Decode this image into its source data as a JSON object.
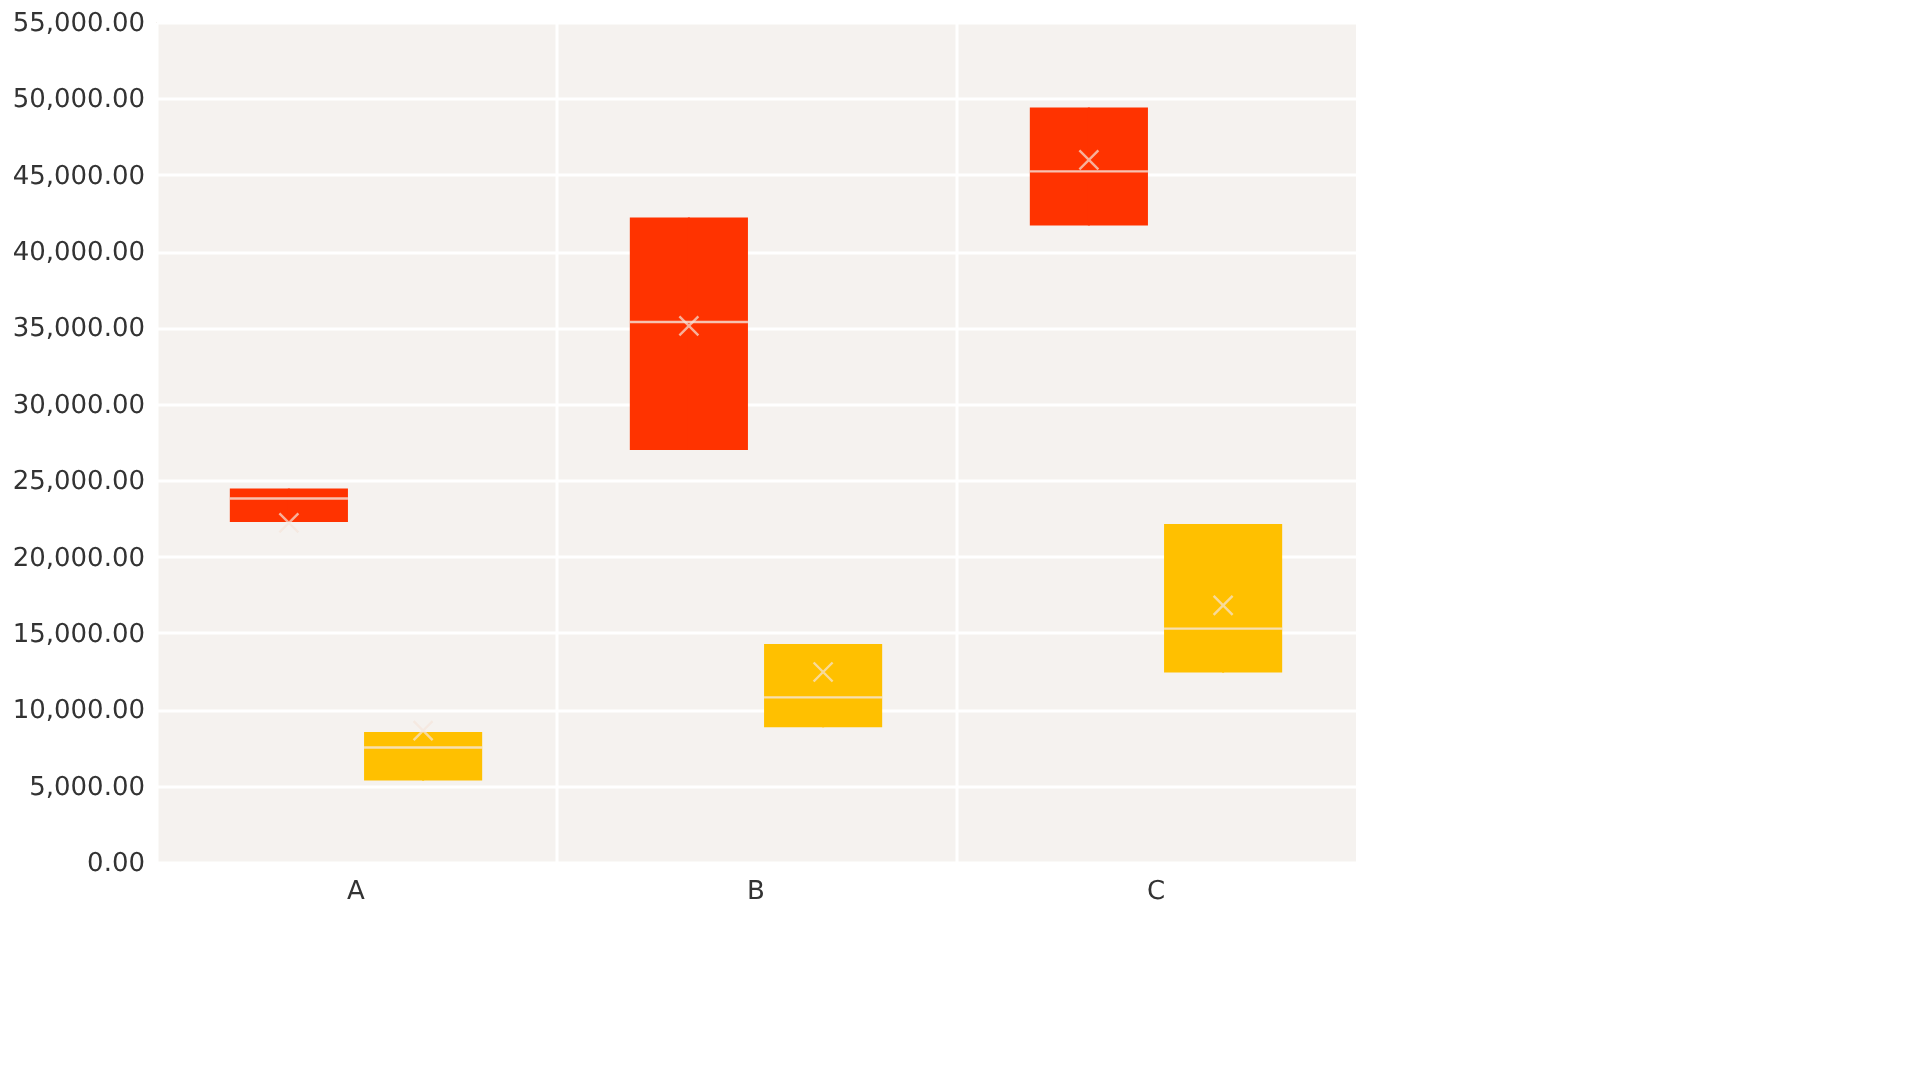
{
  "chart_data": {
    "type": "box",
    "categories": [
      "A",
      "B",
      "C"
    ],
    "series": [
      {
        "color": "#ff3300",
        "boxes": [
          {
            "low": 22260,
            "q1": 22260,
            "median": 23800,
            "q3": 24450,
            "high": 24450,
            "mean": 22200
          },
          {
            "low": 26980,
            "q1": 26980,
            "median": 35360,
            "q3": 42200,
            "high": 42200,
            "mean": 35100
          },
          {
            "low": 41680,
            "q1": 41680,
            "median": 45220,
            "q3": 49400,
            "high": 49400,
            "mean": 45970
          }
        ]
      },
      {
        "color": "#ffc000",
        "boxes": [
          {
            "low": 5330,
            "q1": 5330,
            "median": 7500,
            "q3": 8510,
            "high": 8510,
            "mean": 8600
          },
          {
            "low": 8820,
            "q1": 8820,
            "median": 10780,
            "q3": 14270,
            "high": 14270,
            "mean": 12440
          },
          {
            "low": 12400,
            "q1": 12400,
            "median": 15280,
            "q3": 22130,
            "high": 22130,
            "mean": 16800
          }
        ]
      }
    ],
    "ylim": [
      0,
      55000
    ],
    "yticks": [
      {
        "value": 0,
        "label": "0.00"
      },
      {
        "value": 5000,
        "label": "5,000.00"
      },
      {
        "value": 10000,
        "label": "10,000.00"
      },
      {
        "value": 15000,
        "label": "15,000.00"
      },
      {
        "value": 20000,
        "label": "20,000.00"
      },
      {
        "value": 25000,
        "label": "25,000.00"
      },
      {
        "value": 30000,
        "label": "30,000.00"
      },
      {
        "value": 35000,
        "label": "35,000.00"
      },
      {
        "value": 40000,
        "label": "40,000.00"
      },
      {
        "value": 45000,
        "label": "45,000.00"
      },
      {
        "value": 50000,
        "label": "50,000.00"
      },
      {
        "value": 55000,
        "label": "55,000.00"
      }
    ],
    "grid": true
  }
}
